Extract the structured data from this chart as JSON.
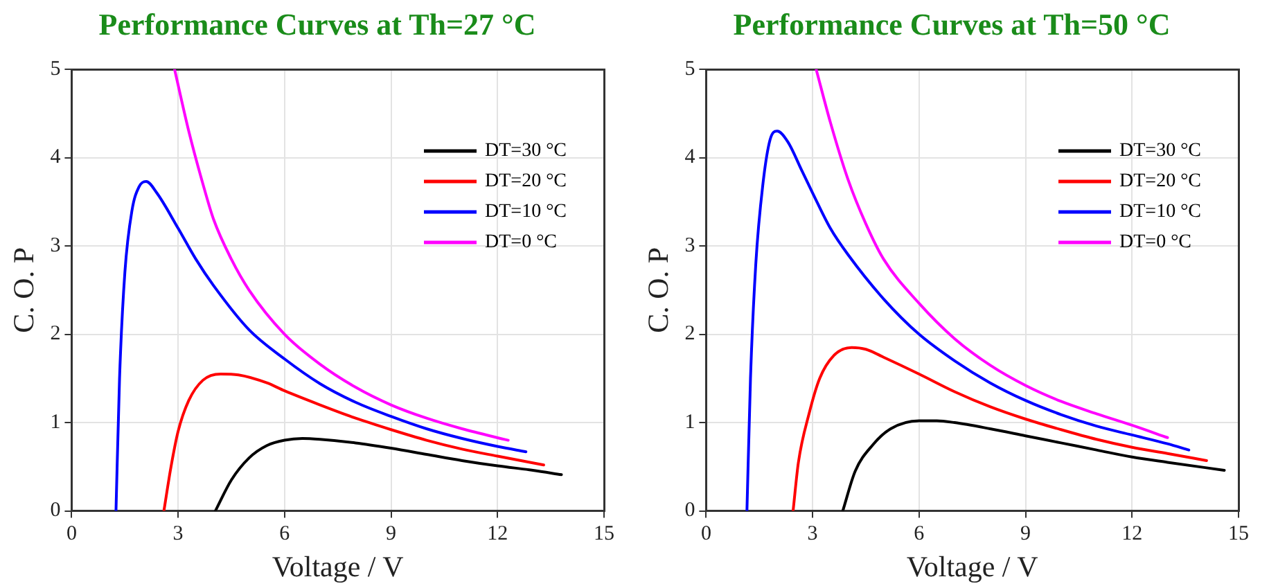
{
  "chart_data": [
    {
      "type": "line",
      "title": "Performance Curves at Th=27 °C",
      "xlabel": "Voltage / V",
      "ylabel": "C. O. P",
      "xlim": [
        0,
        15
      ],
      "xticks": [
        0,
        3,
        6,
        9,
        12,
        15
      ],
      "ylim": [
        0,
        5
      ],
      "yticks": [
        0,
        1,
        2,
        3,
        4,
        5
      ],
      "grid": true,
      "legend": "top right",
      "marker": "none",
      "line_style": "solid",
      "series": [
        {
          "name": "DT=30 °C",
          "color": "#000000",
          "x": [
            4.05,
            4.5,
            5,
            5.5,
            6,
            6.5,
            7,
            8,
            9,
            10,
            11,
            12,
            13,
            13.8
          ],
          "values": [
            0,
            0.35,
            0.6,
            0.74,
            0.8,
            0.82,
            0.81,
            0.77,
            0.71,
            0.64,
            0.57,
            0.51,
            0.46,
            0.41
          ]
        },
        {
          "name": "DT=20 °C",
          "color": "#ff0000",
          "x": [
            2.6,
            2.8,
            3,
            3.3,
            3.7,
            4.2,
            4.7,
            5.5,
            6,
            7,
            8,
            9,
            10,
            11,
            12,
            13.3
          ],
          "values": [
            0,
            0.5,
            0.9,
            1.25,
            1.48,
            1.55,
            1.54,
            1.45,
            1.36,
            1.2,
            1.05,
            0.92,
            0.8,
            0.7,
            0.62,
            0.52
          ]
        },
        {
          "name": "DT=10 °C",
          "color": "#0000ff",
          "x": [
            1.25,
            1.35,
            1.5,
            1.7,
            1.9,
            2.1,
            2.4,
            3,
            3.5,
            4,
            5,
            6,
            7,
            8,
            9,
            10,
            11,
            12,
            12.8
          ],
          "values": [
            0,
            1.5,
            2.7,
            3.4,
            3.67,
            3.73,
            3.6,
            3.2,
            2.85,
            2.55,
            2.05,
            1.72,
            1.44,
            1.23,
            1.07,
            0.93,
            0.82,
            0.73,
            0.67
          ]
        },
        {
          "name": "DT=0 °C",
          "color": "#ff00ff",
          "x": [
            2.9,
            3.3,
            3.7,
            4,
            4.5,
            5,
            6,
            7,
            8,
            9,
            10,
            11,
            12.3
          ],
          "values": [
            5,
            4.3,
            3.7,
            3.3,
            2.85,
            2.5,
            2.0,
            1.66,
            1.4,
            1.2,
            1.05,
            0.93,
            0.8
          ]
        }
      ]
    },
    {
      "type": "line",
      "title": "Performance Curves at Th=50 °C",
      "xlabel": "Voltage / V",
      "ylabel": "C. O. P",
      "xlim": [
        0,
        15
      ],
      "xticks": [
        0,
        3,
        6,
        9,
        12,
        15
      ],
      "ylim": [
        0,
        5
      ],
      "yticks": [
        0,
        1,
        2,
        3,
        4,
        5
      ],
      "grid": true,
      "legend": "top right",
      "marker": "none",
      "line_style": "solid",
      "series": [
        {
          "name": "DT=30 °C",
          "color": "#000000",
          "x": [
            3.85,
            4.2,
            4.7,
            5.2,
            6,
            6.5,
            7,
            8,
            9,
            10,
            11,
            12,
            13,
            14.6
          ],
          "values": [
            0,
            0.45,
            0.75,
            0.93,
            1.02,
            1.02,
            1.0,
            0.93,
            0.85,
            0.77,
            0.69,
            0.61,
            0.55,
            0.46
          ]
        },
        {
          "name": "DT=20 °C",
          "color": "#ff0000",
          "x": [
            2.45,
            2.6,
            2.9,
            3.2,
            3.6,
            4.1,
            4.5,
            5,
            6,
            7,
            8,
            9,
            10,
            11,
            12,
            13,
            14.1
          ],
          "values": [
            0,
            0.55,
            1.1,
            1.5,
            1.76,
            1.85,
            1.83,
            1.74,
            1.55,
            1.35,
            1.18,
            1.04,
            0.92,
            0.81,
            0.72,
            0.65,
            0.57
          ]
        },
        {
          "name": "DT=10 °C",
          "color": "#0000ff",
          "x": [
            1.15,
            1.25,
            1.4,
            1.6,
            1.8,
            2.0,
            2.3,
            2.7,
            3,
            3.5,
            4,
            5,
            6,
            7,
            8,
            9,
            10,
            11,
            12,
            13,
            13.6
          ],
          "values": [
            0,
            1.5,
            2.8,
            3.7,
            4.2,
            4.3,
            4.18,
            3.85,
            3.6,
            3.2,
            2.9,
            2.4,
            2.0,
            1.7,
            1.45,
            1.25,
            1.09,
            0.96,
            0.86,
            0.76,
            0.69
          ]
        },
        {
          "name": "DT=0 °C",
          "color": "#ff00ff",
          "x": [
            3.1,
            3.5,
            4,
            4.5,
            5,
            6,
            7,
            8,
            9,
            10,
            11,
            12,
            13
          ],
          "values": [
            5,
            4.4,
            3.75,
            3.25,
            2.85,
            2.35,
            1.95,
            1.65,
            1.42,
            1.24,
            1.1,
            0.97,
            0.83
          ]
        }
      ]
    }
  ]
}
